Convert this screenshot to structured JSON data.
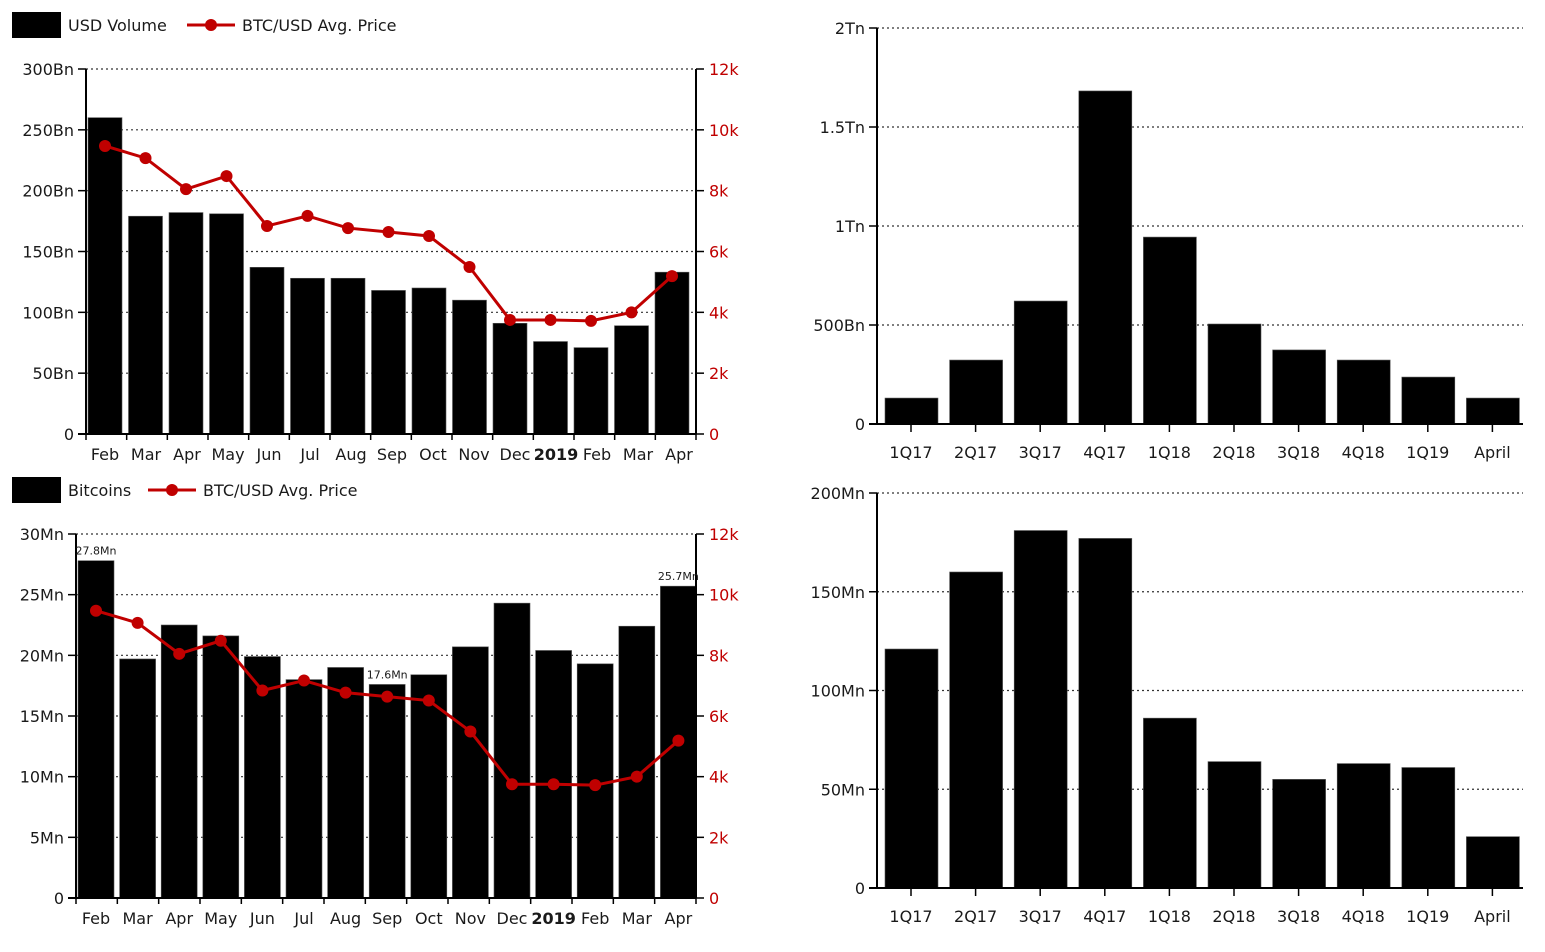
{
  "colors": {
    "bar": "#000000",
    "price_line": "#c00000",
    "grid": "#333333",
    "axis": "#000000"
  },
  "chart_data": [
    {
      "id": "usd-volume-monthly",
      "type": "bar+line",
      "legend": {
        "position": "top-left",
        "items": [
          {
            "label": "USD Volume",
            "symbol": "bar-swatch"
          },
          {
            "label": "BTC/USD Avg. Price",
            "symbol": "line-marker"
          }
        ]
      },
      "categories": [
        "Feb",
        "Mar",
        "Apr",
        "May",
        "Jun",
        "Jul",
        "Aug",
        "Sep",
        "Oct",
        "Nov",
        "Dec",
        "2019",
        "Feb",
        "Mar",
        "Apr"
      ],
      "bold_categories": [
        "2019"
      ],
      "series": [
        {
          "name": "USD Volume",
          "axis": "left",
          "unit": "Bn",
          "type": "bar",
          "values": [
            260,
            179,
            182,
            181,
            137,
            128,
            128,
            118,
            120,
            110,
            91,
            76,
            71,
            89,
            133
          ]
        },
        {
          "name": "BTC/USD Avg. Price",
          "axis": "right",
          "unit": "USD",
          "type": "line",
          "values": [
            9470,
            9070,
            8050,
            8480,
            6840,
            7170,
            6770,
            6640,
            6510,
            5490,
            3750,
            3750,
            3720,
            4000,
            5190
          ]
        }
      ],
      "left_axis": {
        "ylim": [
          0,
          300
        ],
        "ticks": [
          0,
          50,
          100,
          150,
          200,
          250,
          300
        ],
        "tick_labels": [
          "0",
          "50Bn",
          "100Bn",
          "150Bn",
          "200Bn",
          "250Bn",
          "300Bn"
        ]
      },
      "right_axis": {
        "ylim": [
          0,
          12000
        ],
        "ticks": [
          0,
          2000,
          4000,
          6000,
          8000,
          10000,
          12000
        ],
        "tick_labels": [
          "0",
          "2k",
          "4k",
          "6k",
          "8k",
          "10k",
          "12k"
        ]
      },
      "data_labels": [],
      "grid": true
    },
    {
      "id": "usd-volume-quarterly",
      "type": "bar",
      "categories": [
        "1Q17",
        "2Q17",
        "3Q17",
        "4Q17",
        "1Q18",
        "2Q18",
        "3Q18",
        "4Q18",
        "1Q19",
        "April"
      ],
      "series": [
        {
          "name": "USD Volume",
          "unit": "Bn",
          "values": [
            131,
            323,
            621,
            1682,
            944,
            505,
            374,
            323,
            237,
            131
          ]
        }
      ],
      "left_axis": {
        "ylim": [
          0,
          2000
        ],
        "ticks": [
          0,
          500,
          1000,
          1500,
          2000
        ],
        "tick_labels": [
          "0",
          "500Bn",
          "1Tn",
          "1.5Tn",
          "2Tn"
        ]
      },
      "grid": true
    },
    {
      "id": "bitcoins-monthly",
      "type": "bar+line",
      "legend": {
        "position": "top-left",
        "items": [
          {
            "label": "Bitcoins",
            "symbol": "bar-swatch"
          },
          {
            "label": "BTC/USD Avg. Price",
            "symbol": "line-marker"
          }
        ]
      },
      "categories": [
        "Feb",
        "Mar",
        "Apr",
        "May",
        "Jun",
        "Jul",
        "Aug",
        "Sep",
        "Oct",
        "Nov",
        "Dec",
        "2019",
        "Feb",
        "Mar",
        "Apr"
      ],
      "bold_categories": [
        "2019"
      ],
      "series": [
        {
          "name": "Bitcoins",
          "axis": "left",
          "unit": "Mn",
          "type": "bar",
          "values": [
            27.8,
            19.7,
            22.5,
            21.6,
            19.9,
            18.0,
            19.0,
            17.6,
            18.4,
            20.7,
            24.3,
            20.4,
            19.3,
            22.4,
            25.7
          ]
        },
        {
          "name": "BTC/USD Avg. Price",
          "axis": "right",
          "unit": "USD",
          "type": "line",
          "values": [
            9470,
            9070,
            8050,
            8480,
            6840,
            7170,
            6770,
            6640,
            6510,
            5490,
            3750,
            3750,
            3720,
            4000,
            5190
          ]
        }
      ],
      "left_axis": {
        "ylim": [
          0,
          30
        ],
        "ticks": [
          0,
          5,
          10,
          15,
          20,
          25,
          30
        ],
        "tick_labels": [
          "0",
          "5Mn",
          "10Mn",
          "15Mn",
          "20Mn",
          "25Mn",
          "30Mn"
        ]
      },
      "right_axis": {
        "ylim": [
          0,
          12000
        ],
        "ticks": [
          0,
          2000,
          4000,
          6000,
          8000,
          10000,
          12000
        ],
        "tick_labels": [
          "0",
          "2k",
          "4k",
          "6k",
          "8k",
          "10k",
          "12k"
        ]
      },
      "data_labels": [
        {
          "index": 0,
          "text": "27.8Mn"
        },
        {
          "index": 7,
          "text": "17.6Mn"
        },
        {
          "index": 14,
          "text": "25.7Mn"
        }
      ],
      "grid": true
    },
    {
      "id": "bitcoins-quarterly",
      "type": "bar",
      "categories": [
        "1Q17",
        "2Q17",
        "3Q17",
        "4Q17",
        "1Q18",
        "2Q18",
        "3Q18",
        "4Q18",
        "1Q19",
        "April"
      ],
      "series": [
        {
          "name": "Bitcoins",
          "unit": "Mn",
          "values": [
            121,
            160,
            181,
            177,
            86,
            64,
            55,
            63,
            61,
            26
          ]
        }
      ],
      "left_axis": {
        "ylim": [
          0,
          200
        ],
        "ticks": [
          0,
          50,
          100,
          150,
          200
        ],
        "tick_labels": [
          "0",
          "50Mn",
          "100Mn",
          "150Mn",
          "200Mn"
        ]
      },
      "grid": true
    }
  ]
}
